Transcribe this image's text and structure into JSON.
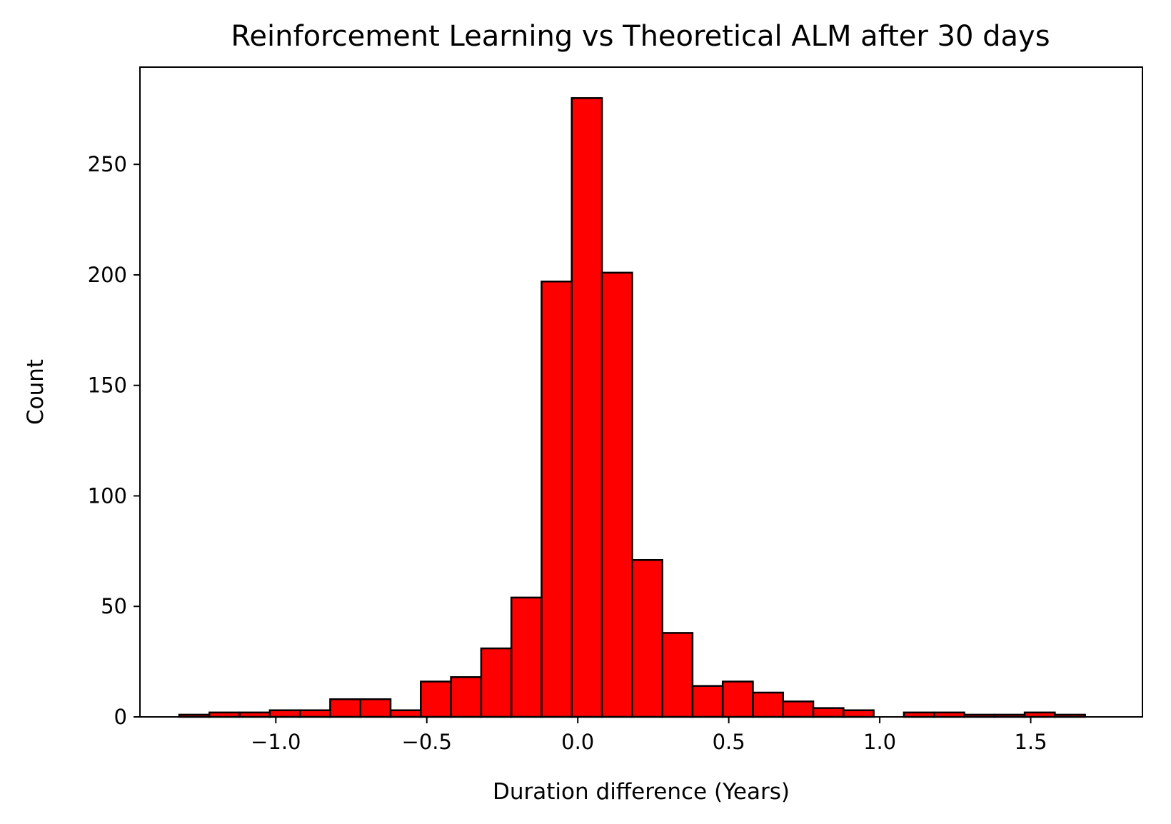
{
  "chart_data": {
    "type": "bar",
    "title": "Reinforcement Learning vs Theoretical ALM after 30 days",
    "xlabel": "Duration difference (Years)",
    "ylabel": "Count",
    "xlim": [
      -1.45,
      1.87
    ],
    "ylim": [
      0,
      294
    ],
    "grid": false,
    "x_ticks": [
      -1.0,
      -0.5,
      0.0,
      0.5,
      1.0,
      1.5
    ],
    "x_tick_labels": [
      "−1.0",
      "−0.5",
      "0.0",
      "0.5",
      "1.0",
      "1.5"
    ],
    "y_ticks": [
      0,
      50,
      100,
      150,
      200,
      250
    ],
    "y_tick_labels": [
      "0",
      "50",
      "100",
      "150",
      "200",
      "250"
    ],
    "bar_color": "#ff0000",
    "edge_color": "#000000",
    "bins": [
      {
        "x0": -1.32,
        "x1": -1.22,
        "count": 1
      },
      {
        "x0": -1.22,
        "x1": -1.12,
        "count": 2
      },
      {
        "x0": -1.12,
        "x1": -1.02,
        "count": 2
      },
      {
        "x0": -1.02,
        "x1": -0.92,
        "count": 3
      },
      {
        "x0": -0.92,
        "x1": -0.82,
        "count": 3
      },
      {
        "x0": -0.82,
        "x1": -0.72,
        "count": 8
      },
      {
        "x0": -0.72,
        "x1": -0.62,
        "count": 8
      },
      {
        "x0": -0.62,
        "x1": -0.52,
        "count": 3
      },
      {
        "x0": -0.52,
        "x1": -0.42,
        "count": 16
      },
      {
        "x0": -0.42,
        "x1": -0.32,
        "count": 18
      },
      {
        "x0": -0.32,
        "x1": -0.22,
        "count": 31
      },
      {
        "x0": -0.22,
        "x1": -0.12,
        "count": 54
      },
      {
        "x0": -0.12,
        "x1": -0.02,
        "count": 197
      },
      {
        "x0": -0.02,
        "x1": 0.08,
        "count": 280
      },
      {
        "x0": 0.08,
        "x1": 0.18,
        "count": 201
      },
      {
        "x0": 0.18,
        "x1": 0.28,
        "count": 71
      },
      {
        "x0": 0.28,
        "x1": 0.38,
        "count": 38
      },
      {
        "x0": 0.38,
        "x1": 0.48,
        "count": 14
      },
      {
        "x0": 0.48,
        "x1": 0.58,
        "count": 16
      },
      {
        "x0": 0.58,
        "x1": 0.68,
        "count": 11
      },
      {
        "x0": 0.68,
        "x1": 0.78,
        "count": 7
      },
      {
        "x0": 0.78,
        "x1": 0.88,
        "count": 4
      },
      {
        "x0": 0.88,
        "x1": 0.98,
        "count": 3
      },
      {
        "x0": 0.98,
        "x1": 1.08,
        "count": 0
      },
      {
        "x0": 1.08,
        "x1": 1.18,
        "count": 2
      },
      {
        "x0": 1.18,
        "x1": 1.28,
        "count": 2
      },
      {
        "x0": 1.28,
        "x1": 1.38,
        "count": 1
      },
      {
        "x0": 1.38,
        "x1": 1.48,
        "count": 1
      },
      {
        "x0": 1.48,
        "x1": 1.58,
        "count": 2
      },
      {
        "x0": 1.58,
        "x1": 1.68,
        "count": 1
      }
    ]
  }
}
